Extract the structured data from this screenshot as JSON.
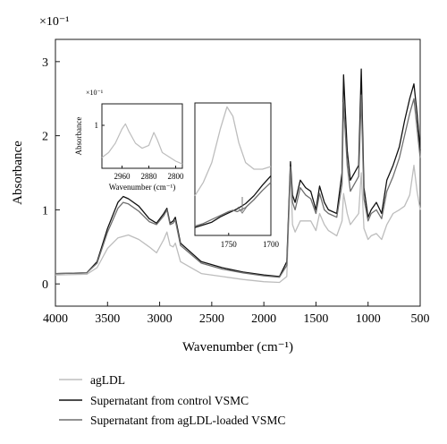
{
  "chart_data": [
    {
      "type": "line",
      "title": "",
      "xlabel": "Wavenumber (cm⁻¹)",
      "ylabel": "Absorbance",
      "scale_label": "×10⁻¹",
      "xlim": [
        4000,
        500
      ],
      "ylim": [
        -0.3,
        3.3
      ],
      "x_ticks": [
        4000,
        3500,
        3000,
        2500,
        2000,
        1500,
        1000,
        500
      ],
      "y_ticks": [
        0,
        1,
        2,
        3
      ],
      "grid": false,
      "legend_position": "below",
      "series": [
        {
          "name": "agLDL",
          "color": "#bdbdbd",
          "points": [
            [
              4000,
              0.12
            ],
            [
              3700,
              0.13
            ],
            [
              3600,
              0.22
            ],
            [
              3500,
              0.48
            ],
            [
              3400,
              0.62
            ],
            [
              3300,
              0.66
            ],
            [
              3200,
              0.6
            ],
            [
              3100,
              0.5
            ],
            [
              3030,
              0.42
            ],
            [
              2960,
              0.6
            ],
            [
              2930,
              0.7
            ],
            [
              2900,
              0.52
            ],
            [
              2870,
              0.5
            ],
            [
              2850,
              0.55
            ],
            [
              2800,
              0.3
            ],
            [
              2600,
              0.14
            ],
            [
              2400,
              0.1
            ],
            [
              2200,
              0.06
            ],
            [
              2000,
              0.03
            ],
            [
              1850,
              0.02
            ],
            [
              1780,
              0.1
            ],
            [
              1745,
              1.55
            ],
            [
              1725,
              0.8
            ],
            [
              1700,
              0.7
            ],
            [
              1650,
              0.85
            ],
            [
              1600,
              0.85
            ],
            [
              1550,
              0.85
            ],
            [
              1500,
              0.72
            ],
            [
              1465,
              0.95
            ],
            [
              1420,
              0.8
            ],
            [
              1380,
              0.72
            ],
            [
              1300,
              0.65
            ],
            [
              1250,
              0.85
            ],
            [
              1235,
              1.22
            ],
            [
              1200,
              0.95
            ],
            [
              1170,
              0.8
            ],
            [
              1090,
              0.95
            ],
            [
              1065,
              1.5
            ],
            [
              1040,
              0.75
            ],
            [
              1000,
              0.6
            ],
            [
              970,
              0.65
            ],
            [
              920,
              0.68
            ],
            [
              870,
              0.6
            ],
            [
              820,
              0.8
            ],
            [
              760,
              0.95
            ],
            [
              700,
              1.0
            ],
            [
              650,
              1.05
            ],
            [
              600,
              1.2
            ],
            [
              560,
              1.6
            ],
            [
              530,
              1.25
            ],
            [
              500,
              1.0
            ]
          ]
        },
        {
          "name": "Supernatant from control VSMC",
          "color": "#111111",
          "points": [
            [
              4000,
              0.14
            ],
            [
              3700,
              0.15
            ],
            [
              3600,
              0.3
            ],
            [
              3500,
              0.75
            ],
            [
              3400,
              1.1
            ],
            [
              3350,
              1.18
            ],
            [
              3300,
              1.15
            ],
            [
              3200,
              1.05
            ],
            [
              3100,
              0.88
            ],
            [
              3030,
              0.82
            ],
            [
              2960,
              0.95
            ],
            [
              2930,
              1.02
            ],
            [
              2900,
              0.82
            ],
            [
              2870,
              0.85
            ],
            [
              2850,
              0.9
            ],
            [
              2800,
              0.55
            ],
            [
              2600,
              0.3
            ],
            [
              2400,
              0.22
            ],
            [
              2200,
              0.16
            ],
            [
              2000,
              0.12
            ],
            [
              1850,
              0.1
            ],
            [
              1780,
              0.3
            ],
            [
              1745,
              1.65
            ],
            [
              1725,
              1.2
            ],
            [
              1700,
              1.1
            ],
            [
              1650,
              1.4
            ],
            [
              1600,
              1.3
            ],
            [
              1550,
              1.25
            ],
            [
              1500,
              1.0
            ],
            [
              1465,
              1.32
            ],
            [
              1420,
              1.1
            ],
            [
              1380,
              1.0
            ],
            [
              1300,
              0.95
            ],
            [
              1250,
              1.5
            ],
            [
              1235,
              2.82
            ],
            [
              1200,
              1.8
            ],
            [
              1170,
              1.4
            ],
            [
              1090,
              1.6
            ],
            [
              1065,
              2.9
            ],
            [
              1040,
              1.3
            ],
            [
              1000,
              0.9
            ],
            [
              970,
              1.0
            ],
            [
              920,
              1.1
            ],
            [
              870,
              0.95
            ],
            [
              820,
              1.4
            ],
            [
              760,
              1.6
            ],
            [
              700,
              1.85
            ],
            [
              650,
              2.2
            ],
            [
              600,
              2.5
            ],
            [
              560,
              2.7
            ],
            [
              530,
              2.3
            ],
            [
              500,
              1.8
            ]
          ]
        },
        {
          "name": "Supernatant from agLDL-loaded VSMC",
          "color": "#6e6e6e",
          "points": [
            [
              4000,
              0.14
            ],
            [
              3700,
              0.15
            ],
            [
              3600,
              0.28
            ],
            [
              3500,
              0.7
            ],
            [
              3400,
              1.02
            ],
            [
              3350,
              1.1
            ],
            [
              3300,
              1.08
            ],
            [
              3200,
              0.98
            ],
            [
              3100,
              0.84
            ],
            [
              3030,
              0.8
            ],
            [
              2960,
              0.92
            ],
            [
              2930,
              1.0
            ],
            [
              2900,
              0.8
            ],
            [
              2870,
              0.82
            ],
            [
              2850,
              0.86
            ],
            [
              2800,
              0.52
            ],
            [
              2600,
              0.28
            ],
            [
              2400,
              0.2
            ],
            [
              2200,
              0.15
            ],
            [
              2000,
              0.11
            ],
            [
              1850,
              0.09
            ],
            [
              1780,
              0.25
            ],
            [
              1745,
              1.58
            ],
            [
              1725,
              1.1
            ],
            [
              1700,
              1.0
            ],
            [
              1650,
              1.3
            ],
            [
              1600,
              1.2
            ],
            [
              1550,
              1.15
            ],
            [
              1500,
              0.95
            ],
            [
              1465,
              1.22
            ],
            [
              1420,
              1.0
            ],
            [
              1380,
              0.95
            ],
            [
              1300,
              0.9
            ],
            [
              1250,
              1.35
            ],
            [
              1235,
              2.45
            ],
            [
              1200,
              1.6
            ],
            [
              1170,
              1.25
            ],
            [
              1090,
              1.45
            ],
            [
              1065,
              2.55
            ],
            [
              1040,
              1.15
            ],
            [
              1000,
              0.85
            ],
            [
              970,
              0.95
            ],
            [
              920,
              1.0
            ],
            [
              870,
              0.88
            ],
            [
              820,
              1.25
            ],
            [
              760,
              1.45
            ],
            [
              700,
              1.7
            ],
            [
              650,
              2.0
            ],
            [
              600,
              2.3
            ],
            [
              560,
              2.5
            ],
            [
              530,
              2.1
            ],
            [
              500,
              1.7
            ]
          ]
        }
      ]
    },
    {
      "type": "line",
      "title": "",
      "xlabel": "Wavenumber (cm⁻¹)",
      "ylabel": "Absorbance",
      "scale_label": "×10⁻¹",
      "xlim": [
        3020,
        2780
      ],
      "ylim": [
        0.4,
        1.3
      ],
      "x_ticks": [
        2960,
        2880,
        2800
      ],
      "y_ticks": [
        1
      ],
      "series": [
        {
          "name": "agLDL",
          "color": "#bdbdbd",
          "points": [
            [
              3020,
              0.55
            ],
            [
              3000,
              0.62
            ],
            [
              2980,
              0.75
            ],
            [
              2960,
              0.95
            ],
            [
              2950,
              1.02
            ],
            [
              2940,
              0.92
            ],
            [
              2920,
              0.75
            ],
            [
              2900,
              0.68
            ],
            [
              2880,
              0.72
            ],
            [
              2865,
              0.9
            ],
            [
              2855,
              0.8
            ],
            [
              2840,
              0.62
            ],
            [
              2800,
              0.5
            ],
            [
              2780,
              0.46
            ]
          ]
        }
      ]
    },
    {
      "type": "line",
      "title": "",
      "xlabel": "",
      "ylabel": "",
      "xlim": [
        1790,
        1700
      ],
      "ylim": [
        0,
        1
      ],
      "x_ticks": [
        1750,
        1700
      ],
      "annotation": "downward arrow marking the shoulder near 1745 cm⁻¹",
      "series": [
        {
          "name": "agLDL",
          "color": "#bdbdbd",
          "points": [
            [
              1790,
              0.3
            ],
            [
              1780,
              0.4
            ],
            [
              1770,
              0.55
            ],
            [
              1760,
              0.8
            ],
            [
              1752,
              0.97
            ],
            [
              1745,
              0.9
            ],
            [
              1738,
              0.7
            ],
            [
              1730,
              0.55
            ],
            [
              1720,
              0.5
            ],
            [
              1710,
              0.5
            ],
            [
              1700,
              0.52
            ]
          ]
        },
        {
          "name": "Supernatant from control VSMC",
          "color": "#111111",
          "points": [
            [
              1790,
              0.06
            ],
            [
              1780,
              0.08
            ],
            [
              1770,
              0.1
            ],
            [
              1760,
              0.14
            ],
            [
              1750,
              0.17
            ],
            [
              1740,
              0.2
            ],
            [
              1730,
              0.24
            ],
            [
              1720,
              0.3
            ],
            [
              1710,
              0.38
            ],
            [
              1700,
              0.45
            ]
          ]
        },
        {
          "name": "Supernatant from agLDL-loaded VSMC",
          "color": "#6e6e6e",
          "points": [
            [
              1790,
              0.07
            ],
            [
              1780,
              0.09
            ],
            [
              1770,
              0.12
            ],
            [
              1760,
              0.15
            ],
            [
              1750,
              0.18
            ],
            [
              1745,
              0.19
            ],
            [
              1740,
              0.18
            ],
            [
              1730,
              0.21
            ],
            [
              1720,
              0.27
            ],
            [
              1710,
              0.34
            ],
            [
              1700,
              0.4
            ]
          ]
        }
      ]
    }
  ]
}
